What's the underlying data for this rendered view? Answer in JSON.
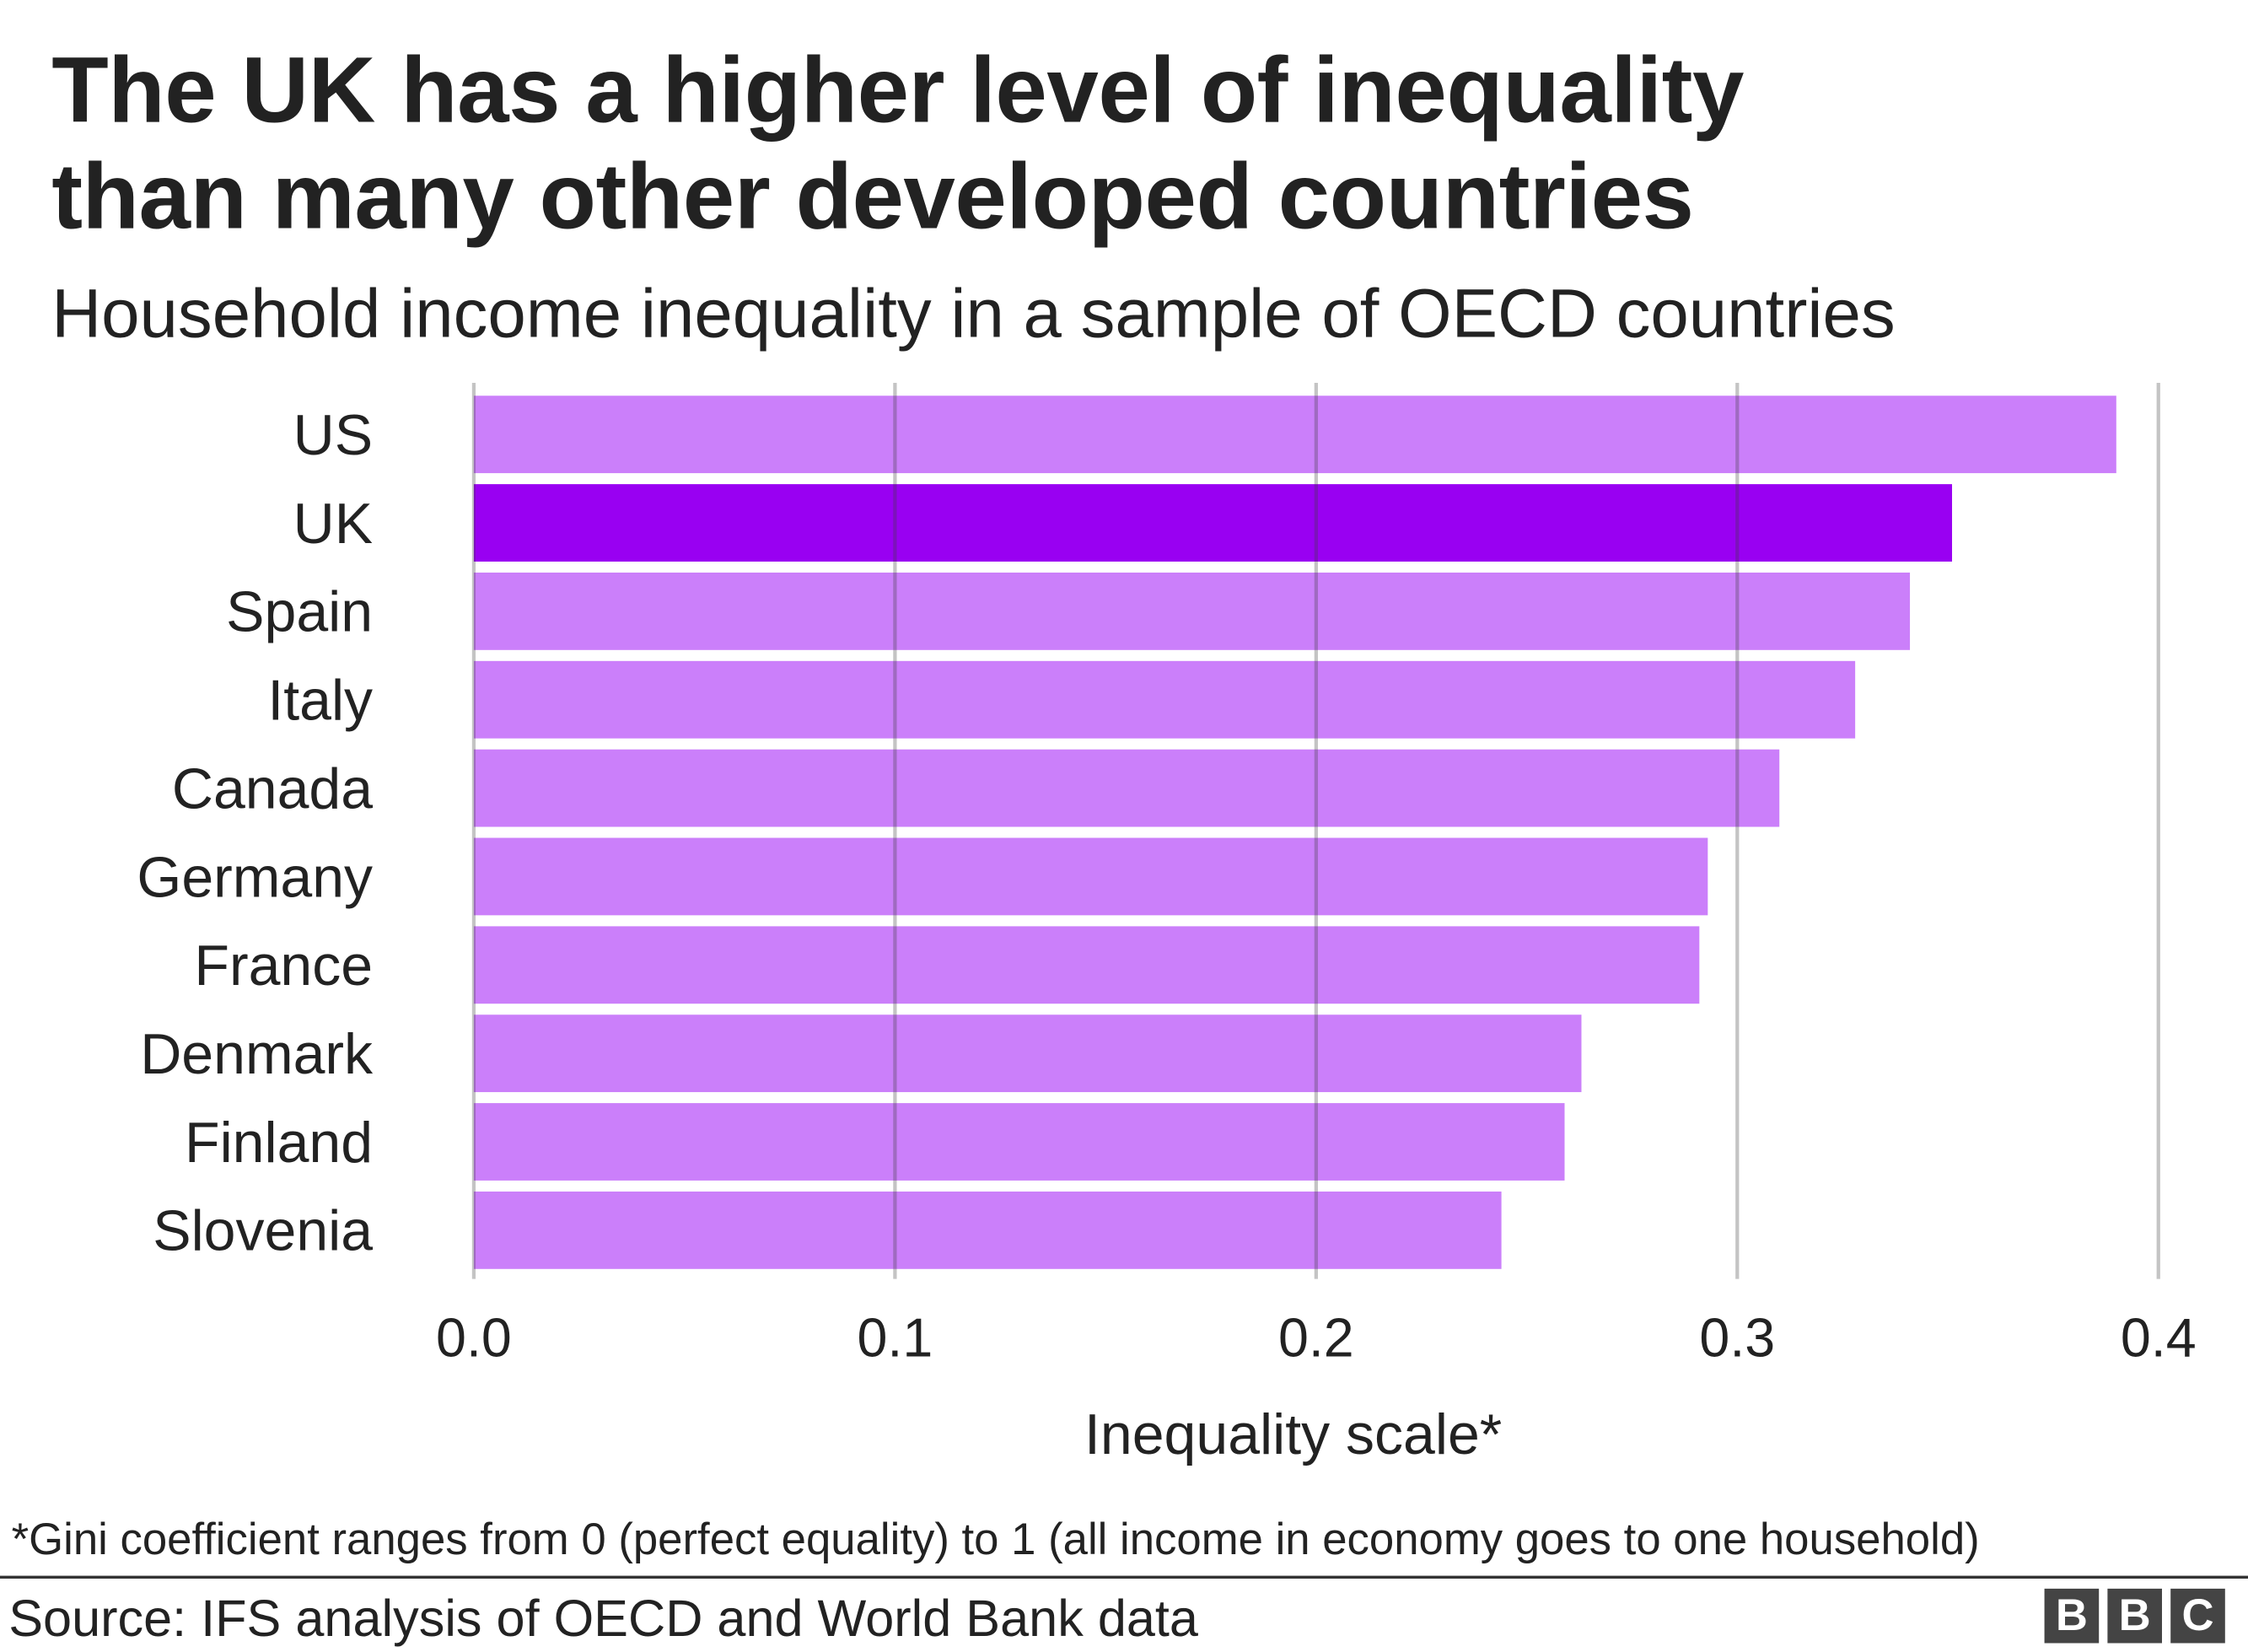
{
  "title_line1": "The UK has a higher level of inequality",
  "title_line2": "than many other developed countries",
  "subtitle": "Household income inequality in a sample of OECD countries",
  "footnote": "*Gini coefficient ranges from 0 (perfect equality) to 1 (all income in economy goes to one household)",
  "source": "Source: IFS analysis of OECD and World Bank data",
  "logo": [
    "B",
    "B",
    "C"
  ],
  "chart_data": {
    "type": "bar",
    "orientation": "horizontal",
    "categories": [
      "US",
      "UK",
      "Spain",
      "Italy",
      "Canada",
      "Germany",
      "France",
      "Denmark",
      "Finland",
      "Slovenia"
    ],
    "values": [
      0.39,
      0.351,
      0.341,
      0.328,
      0.31,
      0.293,
      0.291,
      0.263,
      0.259,
      0.244
    ],
    "highlight": "UK",
    "colors": {
      "default": "#cb7ffa",
      "highlight": "#9900f2",
      "grid": "#bbbbbb"
    },
    "xlabel": "Inequality scale*",
    "xlim": [
      0,
      0.4
    ],
    "xticks": [
      "0.0",
      "0.1",
      "0.2",
      "0.3",
      "0.4"
    ],
    "grid": true
  }
}
